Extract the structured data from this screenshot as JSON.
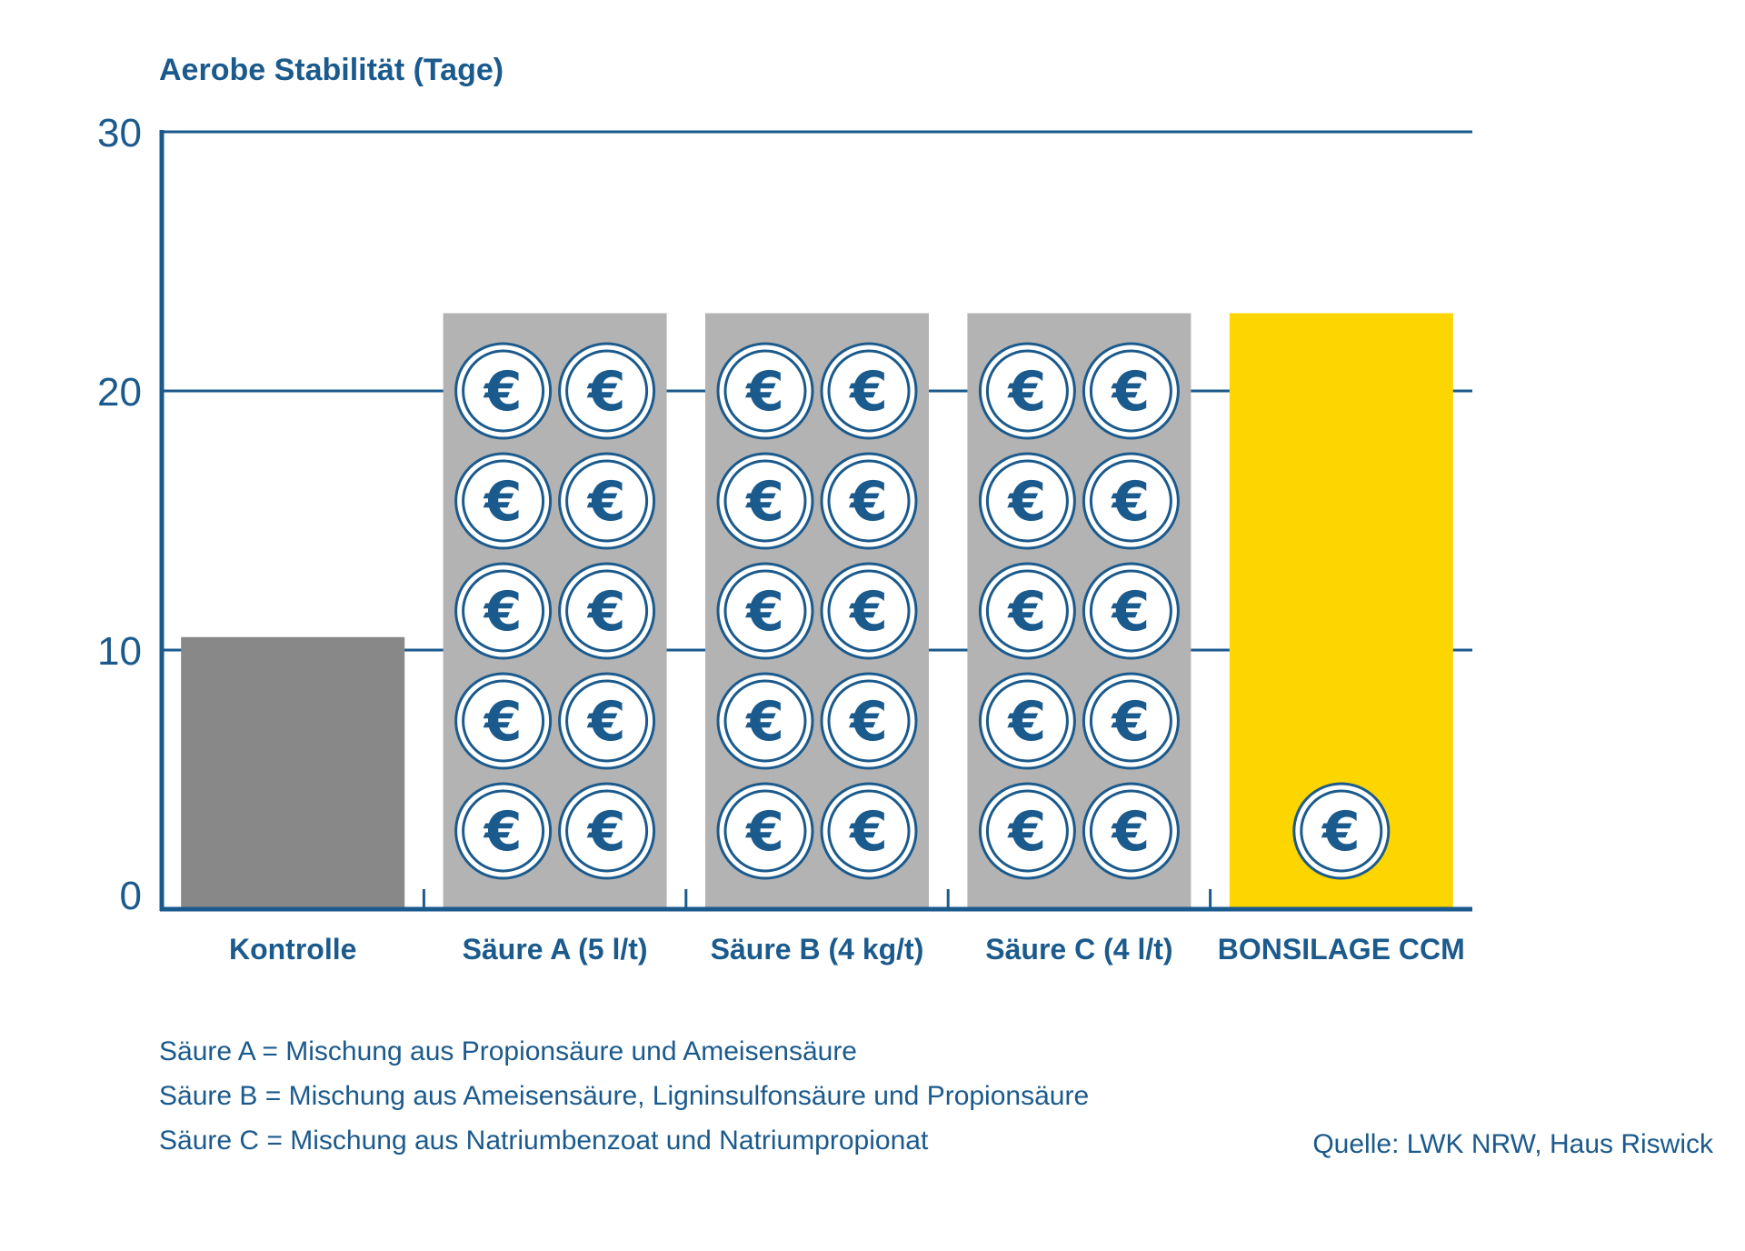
{
  "chart_data": {
    "type": "bar",
    "title": "Aerobe Stabilität (Tage)",
    "ylim": [
      0,
      30
    ],
    "yticks": [
      0,
      10,
      20,
      30
    ],
    "grid": true,
    "categories": [
      "Kontrolle",
      "Säure A (5 l/t)",
      "Säure B (4 kg/t)",
      "Säure C (4 l/t)",
      "BONSILAGE CCM"
    ],
    "values": [
      10.5,
      23,
      23,
      23,
      23
    ],
    "bar_colors": [
      "#888888",
      "#b3b3b3",
      "#b3b3b3",
      "#b3b3b3",
      "#fdd500"
    ],
    "coin_counts": [
      0,
      10,
      10,
      10,
      1
    ],
    "coin_symbol": "€",
    "axis_color": "#1b5a8c"
  },
  "notes": [
    "Säure A = Mischung aus Propionsäure und Ameisensäure",
    "Säure B = Mischung aus Ameisensäure, Ligninsulfonsäure und Propionsäure",
    "Säure C = Mischung aus Natriumbenzoat und Natriumpropionat"
  ],
  "source": "Quelle: LWK NRW, Haus Riswick"
}
